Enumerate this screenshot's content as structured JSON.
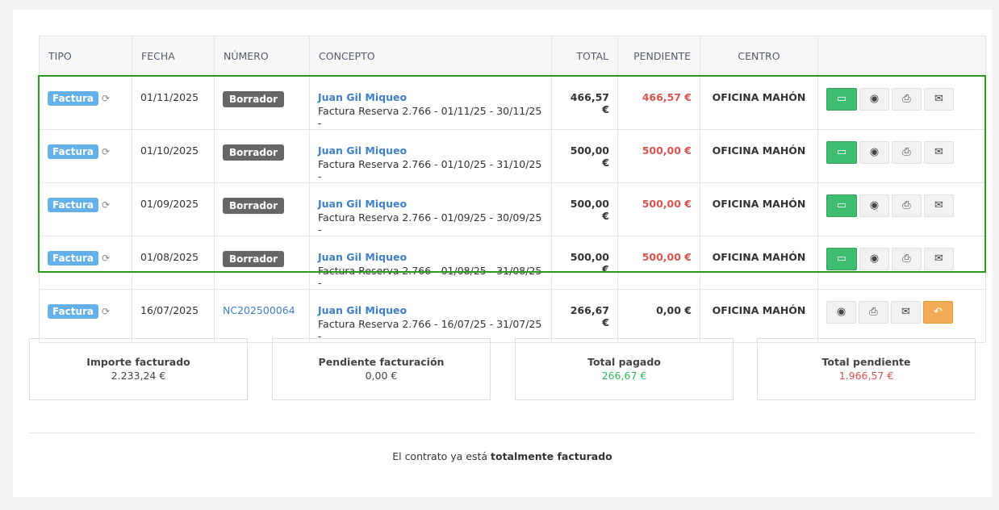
{
  "table": {
    "headers": [
      "TIPO",
      "FECHA",
      "NÚMERO",
      "CONCEPTO",
      "TOTAL",
      "PENDIENTE",
      "CENTRO",
      ""
    ],
    "rows": [
      {
        "tipo": "Factura",
        "fecha": "01/11/2025",
        "numero": "Borrador",
        "numero_is_badge": true,
        "cliente": "Juan Gil Miqueo",
        "concepto": "Factura Reserva 2.766 - 01/11/25 - 30/11/25 -",
        "total": "466,57 €",
        "pendiente": "466,57 €",
        "pendiente_red": true,
        "centro": "OFICINA MAHÓN",
        "actions": [
          "pay",
          "view",
          "print",
          "email"
        ]
      },
      {
        "tipo": "Factura",
        "fecha": "01/10/2025",
        "numero": "Borrador",
        "numero_is_badge": true,
        "cliente": "Juan Gil Miqueo",
        "concepto": "Factura Reserva 2.766 - 01/10/25 - 31/10/25 -",
        "total": "500,00 €",
        "pendiente": "500,00 €",
        "pendiente_red": true,
        "centro": "OFICINA MAHÓN",
        "actions": [
          "pay",
          "view",
          "print",
          "email"
        ]
      },
      {
        "tipo": "Factura",
        "fecha": "01/09/2025",
        "numero": "Borrador",
        "numero_is_badge": true,
        "cliente": "Juan Gil Miqueo",
        "concepto": "Factura Reserva 2.766 - 01/09/25 - 30/09/25 -",
        "total": "500,00 €",
        "pendiente": "500,00 €",
        "pendiente_red": true,
        "centro": "OFICINA MAHÓN",
        "actions": [
          "pay",
          "view",
          "print",
          "email"
        ]
      },
      {
        "tipo": "Factura",
        "fecha": "01/08/2025",
        "numero": "Borrador",
        "numero_is_badge": true,
        "cliente": "Juan Gil Miqueo",
        "concepto": "Factura Reserva 2.766 - 01/08/25 - 31/08/25 -",
        "total": "500,00 €",
        "pendiente": "500,00 €",
        "pendiente_red": true,
        "centro": "OFICINA MAHÓN",
        "actions": [
          "pay",
          "view",
          "print",
          "email"
        ]
      },
      {
        "tipo": "Factura",
        "fecha": "16/07/2025",
        "numero": "NC202500064",
        "numero_is_badge": false,
        "cliente": "Juan Gil Miqueo",
        "concepto": "Factura Reserva 2.766 - 16/07/25 - 31/07/25 -",
        "total": "266,67 €",
        "pendiente": "0,00 €",
        "pendiente_red": false,
        "centro": "OFICINA MAHÓN",
        "actions": [
          "view",
          "print",
          "email",
          "rectify"
        ]
      }
    ]
  },
  "summary": [
    {
      "label": "Importe facturado",
      "value": "2.233,24 €",
      "color": "#444444"
    },
    {
      "label": "Pendiente facturación",
      "value": "0,00 €",
      "color": "#444444"
    },
    {
      "label": "Total pagado",
      "value": "266,67 €",
      "color": "#2fb55c"
    },
    {
      "label": "Total pendiente",
      "value": "1.966,57 €",
      "color": "#d9534f"
    }
  ],
  "footer": {
    "text": "El contrato ya está ",
    "bold": "totalmente facturado"
  }
}
